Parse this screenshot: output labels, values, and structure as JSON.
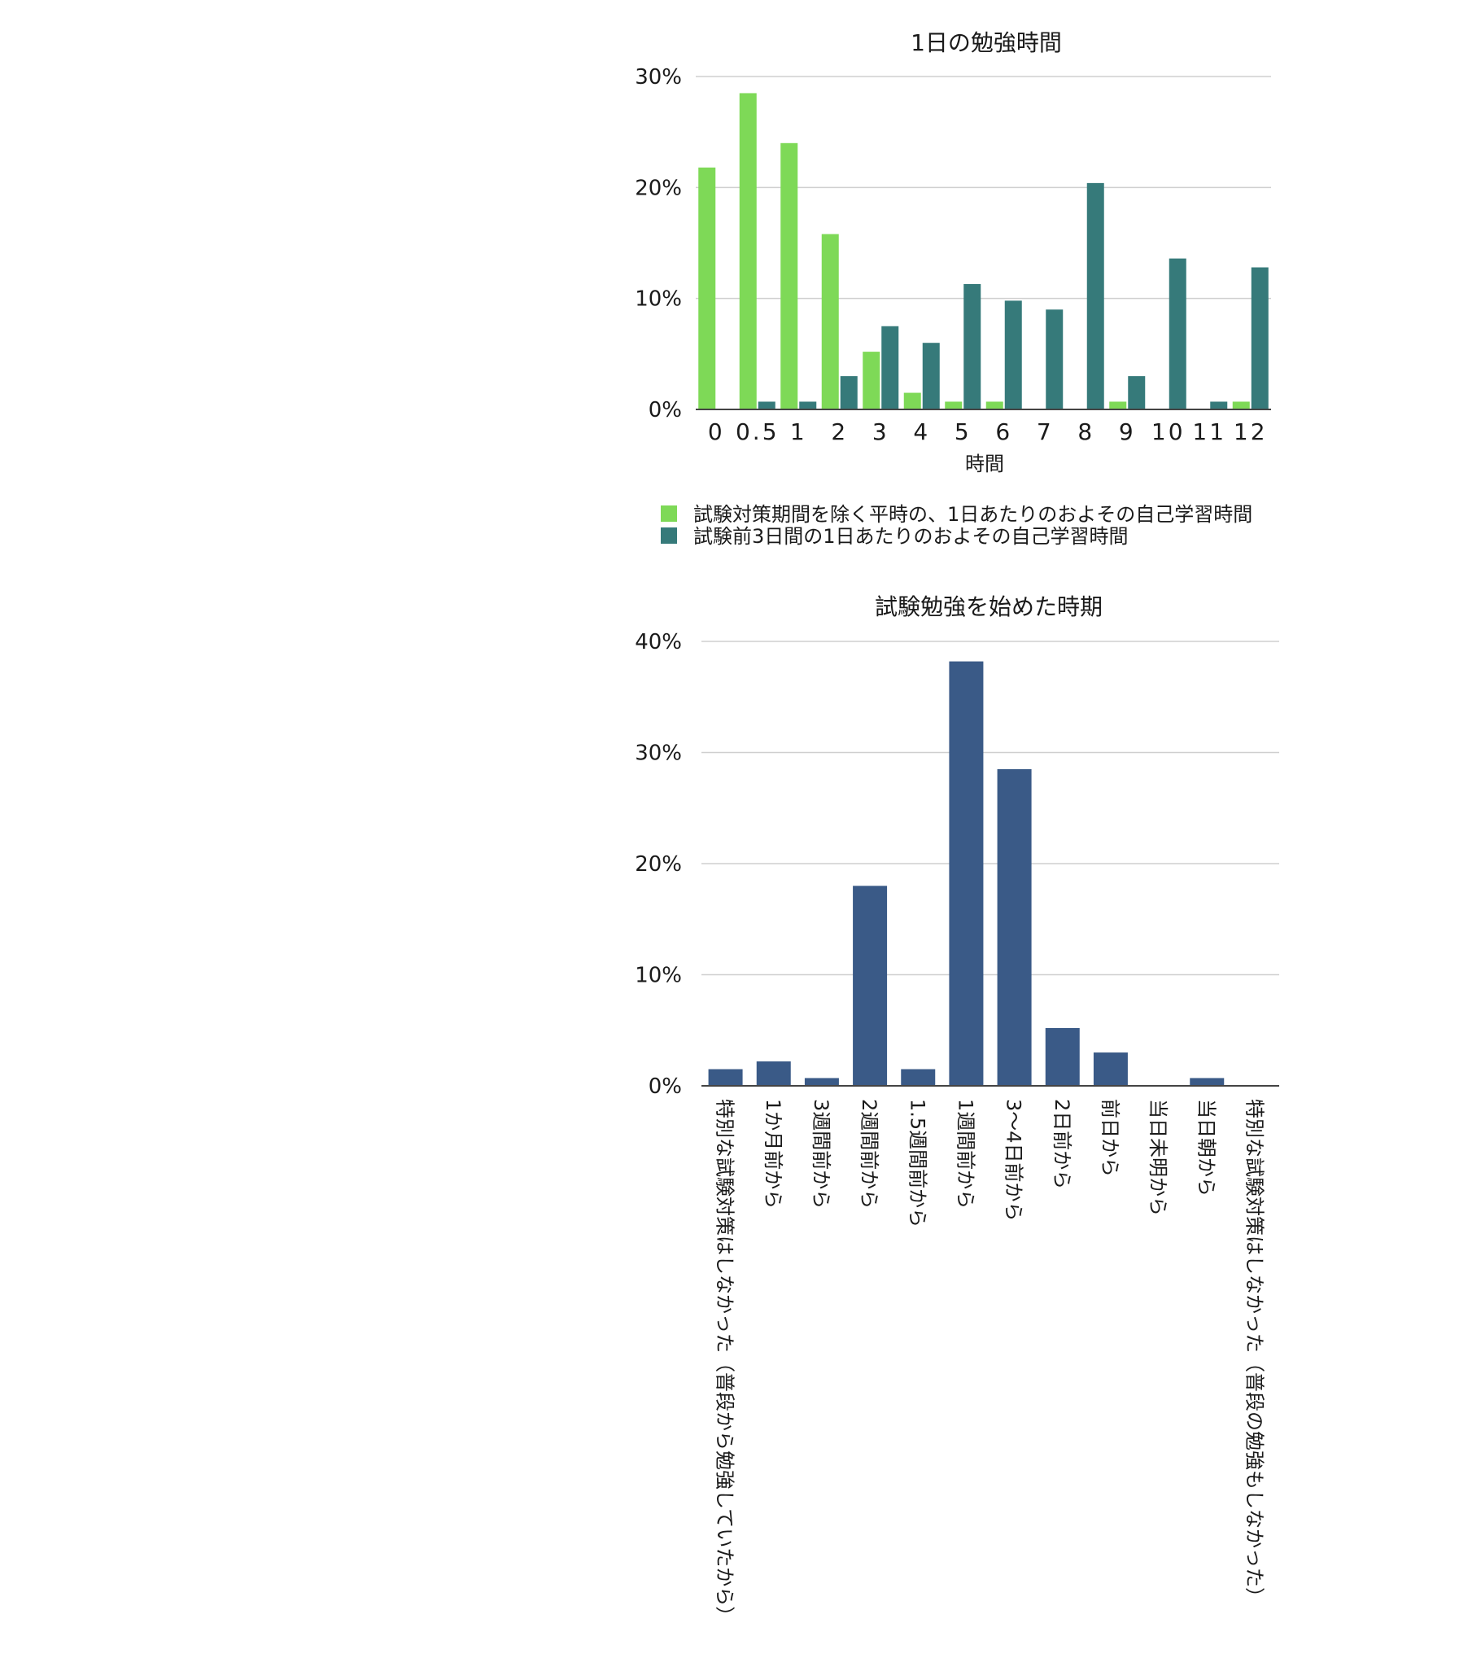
{
  "chart_data": [
    {
      "type": "bar",
      "title": "1日の勉強時間",
      "xlabel": "時間",
      "ylabel": "",
      "ylim": [
        0,
        30
      ],
      "yticks": [
        "0%",
        "10%",
        "20%",
        "30%"
      ],
      "ytick_values": [
        0,
        10,
        20,
        30
      ],
      "categories": [
        "0",
        "0.5",
        "1",
        "2",
        "3",
        "4",
        "5",
        "6",
        "7",
        "8",
        "9",
        "10",
        "11",
        "12"
      ],
      "series": [
        {
          "name": "試験対策期間を除く平時の、1日あたりのおよその自己学習時間",
          "color": "#7ed957",
          "values": [
            21.8,
            28.5,
            24.0,
            15.8,
            5.2,
            1.5,
            0.7,
            0.7,
            0,
            0,
            0.7,
            0,
            0,
            0.7
          ]
        },
        {
          "name": "試験前3日間の1日あたりのおよその自己学習時間",
          "color": "#367a7a",
          "values": [
            0,
            0.7,
            0.7,
            3.0,
            7.5,
            6.0,
            11.3,
            9.8,
            9.0,
            20.4,
            3.0,
            13.6,
            0.7,
            12.8
          ]
        }
      ],
      "legend_position": "bottom",
      "grid": true
    },
    {
      "type": "bar",
      "title": "試験勉強を始めた時期",
      "xlabel": "",
      "ylabel": "",
      "ylim": [
        0,
        40
      ],
      "yticks": [
        "0%",
        "10%",
        "20%",
        "30%",
        "40%"
      ],
      "ytick_values": [
        0,
        10,
        20,
        30,
        40
      ],
      "categories": [
        "特別な試験対策はしなかった（普段から勉強していたから）",
        "1か月前から",
        "3週間前から",
        "2週間前から",
        "1.5週間前から",
        "1週間前から",
        "3～4日前から",
        "2日前から",
        "前日から",
        "当日未明から",
        "当日朝から",
        "特別な試験対策はしなかった（普段の勉強もしなかった）"
      ],
      "series": [
        {
          "name": "",
          "color": "#3a5a87",
          "values": [
            1.5,
            2.2,
            0.7,
            18.0,
            1.5,
            38.2,
            28.5,
            5.2,
            3.0,
            0,
            0.7,
            0
          ]
        }
      ],
      "grid": true
    }
  ]
}
